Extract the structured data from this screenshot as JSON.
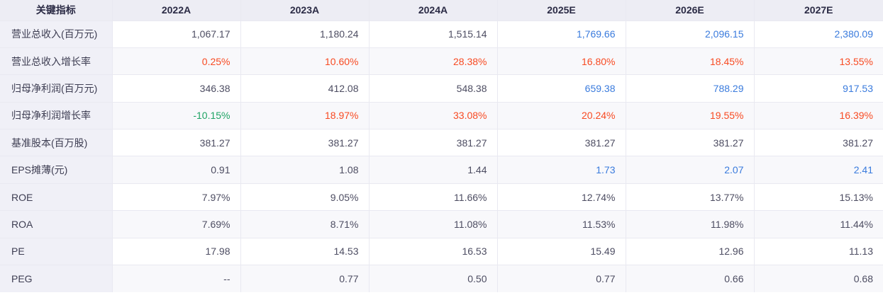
{
  "table": {
    "header": {
      "indicator_label": "关键指标",
      "year_columns": [
        "2022A",
        "2023A",
        "2024A",
        "2025E",
        "2026E",
        "2027E"
      ]
    },
    "value_colors": {
      "default": "#4d4d62",
      "blue": "#3a7bdd",
      "red": "#f84a22",
      "green": "#1ea364"
    },
    "rows": [
      {
        "label": "营业总收入(百万元)",
        "values": [
          "1,067.17",
          "1,180.24",
          "1,515.14",
          "1,769.66",
          "2,096.15",
          "2,380.09"
        ],
        "colors": [
          "default",
          "default",
          "default",
          "blue",
          "blue",
          "blue"
        ]
      },
      {
        "label": "营业总收入增长率",
        "values": [
          "0.25%",
          "10.60%",
          "28.38%",
          "16.80%",
          "18.45%",
          "13.55%"
        ],
        "colors": [
          "red",
          "red",
          "red",
          "red",
          "red",
          "red"
        ]
      },
      {
        "label": "归母净利润(百万元)",
        "values": [
          "346.38",
          "412.08",
          "548.38",
          "659.38",
          "788.29",
          "917.53"
        ],
        "colors": [
          "default",
          "default",
          "default",
          "blue",
          "blue",
          "blue"
        ]
      },
      {
        "label": "归母净利润增长率",
        "values": [
          "-10.15%",
          "18.97%",
          "33.08%",
          "20.24%",
          "19.55%",
          "16.39%"
        ],
        "colors": [
          "green",
          "red",
          "red",
          "red",
          "red",
          "red"
        ]
      },
      {
        "label": "基准股本(百万股)",
        "values": [
          "381.27",
          "381.27",
          "381.27",
          "381.27",
          "381.27",
          "381.27"
        ],
        "colors": [
          "default",
          "default",
          "default",
          "default",
          "default",
          "default"
        ]
      },
      {
        "label": "EPS摊薄(元)",
        "values": [
          "0.91",
          "1.08",
          "1.44",
          "1.73",
          "2.07",
          "2.41"
        ],
        "colors": [
          "default",
          "default",
          "default",
          "blue",
          "blue",
          "blue"
        ]
      },
      {
        "label": "ROE",
        "values": [
          "7.97%",
          "9.05%",
          "11.66%",
          "12.74%",
          "13.77%",
          "15.13%"
        ],
        "colors": [
          "default",
          "default",
          "default",
          "default",
          "default",
          "default"
        ]
      },
      {
        "label": "ROA",
        "values": [
          "7.69%",
          "8.71%",
          "11.08%",
          "11.53%",
          "11.98%",
          "11.44%"
        ],
        "colors": [
          "default",
          "default",
          "default",
          "default",
          "default",
          "default"
        ]
      },
      {
        "label": "PE",
        "values": [
          "17.98",
          "14.53",
          "16.53",
          "15.49",
          "12.96",
          "11.13"
        ],
        "colors": [
          "default",
          "default",
          "default",
          "default",
          "default",
          "default"
        ]
      },
      {
        "label": "PEG",
        "values": [
          "--",
          "0.77",
          "0.50",
          "0.77",
          "0.66",
          "0.68"
        ],
        "colors": [
          "default",
          "default",
          "default",
          "default",
          "default",
          "default"
        ]
      }
    ]
  },
  "chart_data": {
    "type": "table",
    "title": "关键指标",
    "columns": [
      "关键指标",
      "2022A",
      "2023A",
      "2024A",
      "2025E",
      "2026E",
      "2027E"
    ],
    "rows": [
      [
        "营业总收入(百万元)",
        "1,067.17",
        "1,180.24",
        "1,515.14",
        "1,769.66",
        "2,096.15",
        "2,380.09"
      ],
      [
        "营业总收入增长率",
        "0.25%",
        "10.60%",
        "28.38%",
        "16.80%",
        "18.45%",
        "13.55%"
      ],
      [
        "归母净利润(百万元)",
        "346.38",
        "412.08",
        "548.38",
        "659.38",
        "788.29",
        "917.53"
      ],
      [
        "归母净利润增长率",
        "-10.15%",
        "18.97%",
        "33.08%",
        "20.24%",
        "19.55%",
        "16.39%"
      ],
      [
        "基准股本(百万股)",
        "381.27",
        "381.27",
        "381.27",
        "381.27",
        "381.27",
        "381.27"
      ],
      [
        "EPS摊薄(元)",
        "0.91",
        "1.08",
        "1.44",
        "1.73",
        "2.07",
        "2.41"
      ],
      [
        "ROE",
        "7.97%",
        "9.05%",
        "11.66%",
        "12.74%",
        "13.77%",
        "15.13%"
      ],
      [
        "ROA",
        "7.69%",
        "8.71%",
        "11.08%",
        "11.53%",
        "11.98%",
        "11.44%"
      ],
      [
        "PE",
        "17.98",
        "14.53",
        "16.53",
        "15.49",
        "12.96",
        "11.13"
      ],
      [
        "PEG",
        "--",
        "0.77",
        "0.50",
        "0.77",
        "0.66",
        "0.68"
      ]
    ]
  }
}
